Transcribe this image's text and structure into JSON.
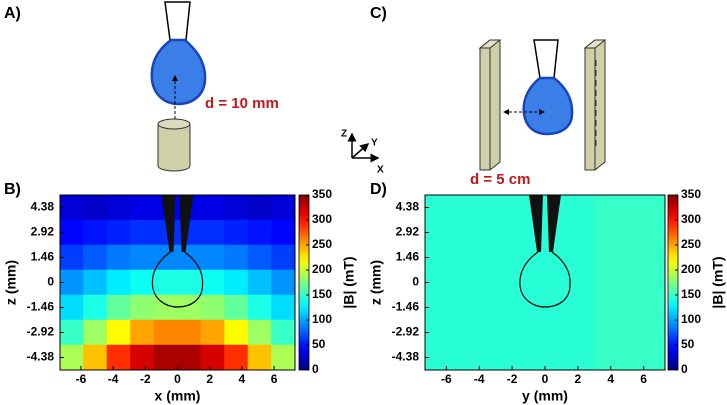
{
  "panel_labels": [
    "A)",
    "B)",
    "C)",
    "D)"
  ],
  "diagram_labels": {
    "distance_a": "d = 10 mm",
    "distance_c": "d = 5 cm",
    "axis_z": "Z",
    "axis_y": "Y",
    "axis_x": "X"
  },
  "chart_data": [
    {
      "type": "heatmap",
      "xlabel": "x (mm)",
      "ylabel": "z (mm)",
      "colorbar_label": "|B| (mT)",
      "colormap": "jet",
      "xbins": [
        -7.3,
        -5.84,
        -4.38,
        -2.92,
        -1.46,
        0,
        1.46,
        2.92,
        4.38,
        5.84,
        7.3
      ],
      "ybins": [
        5.11,
        3.65,
        2.19,
        0.73,
        -0.73,
        -2.19,
        -3.65,
        -5.11
      ],
      "values": [
        [
          30,
          25,
          30,
          35,
          35,
          35,
          35,
          30,
          25,
          30
        ],
        [
          45,
          50,
          55,
          60,
          60,
          60,
          60,
          55,
          50,
          45
        ],
        [
          65,
          75,
          85,
          90,
          90,
          90,
          90,
          85,
          75,
          65
        ],
        [
          95,
          110,
          125,
          135,
          140,
          140,
          135,
          125,
          110,
          95
        ],
        [
          120,
          140,
          165,
          180,
          185,
          185,
          180,
          165,
          140,
          120
        ],
        [
          150,
          185,
          220,
          250,
          260,
          260,
          250,
          220,
          185,
          150
        ],
        [
          190,
          240,
          290,
          320,
          335,
          335,
          320,
          290,
          240,
          190
        ]
      ],
      "xlim": [
        -7.3,
        7.3
      ],
      "ylim": [
        -5.11,
        5.11
      ],
      "xticks": [
        -6,
        -4,
        -2,
        0,
        2,
        4,
        6
      ],
      "yticks": [
        4.38,
        2.92,
        1.46,
        0,
        -1.46,
        -2.92,
        -4.38
      ],
      "clim": [
        0,
        350
      ],
      "cticks": [
        0,
        50,
        100,
        150,
        200,
        250,
        300,
        350
      ]
    },
    {
      "type": "heatmap",
      "xlabel": "y (mm)",
      "ylabel": "z (mm)",
      "colorbar_label": "|B| (mT)",
      "colormap": "jet",
      "xbins": [
        -7.3,
        3,
        7.3
      ],
      "ybins": [
        5.11,
        -5.11
      ],
      "values": [
        [
          145,
          150
        ]
      ],
      "xlim": [
        -7.3,
        7.3
      ],
      "ylim": [
        -5.11,
        5.11
      ],
      "xticks": [
        -6,
        -4,
        -2,
        0,
        2,
        4,
        6
      ],
      "yticks": [
        4.38,
        2.92,
        1.46,
        0,
        -1.46,
        -2.92,
        -4.38
      ],
      "clim": [
        0,
        350
      ],
      "cticks": [
        0,
        50,
        100,
        150,
        200,
        250,
        300,
        350
      ]
    }
  ]
}
